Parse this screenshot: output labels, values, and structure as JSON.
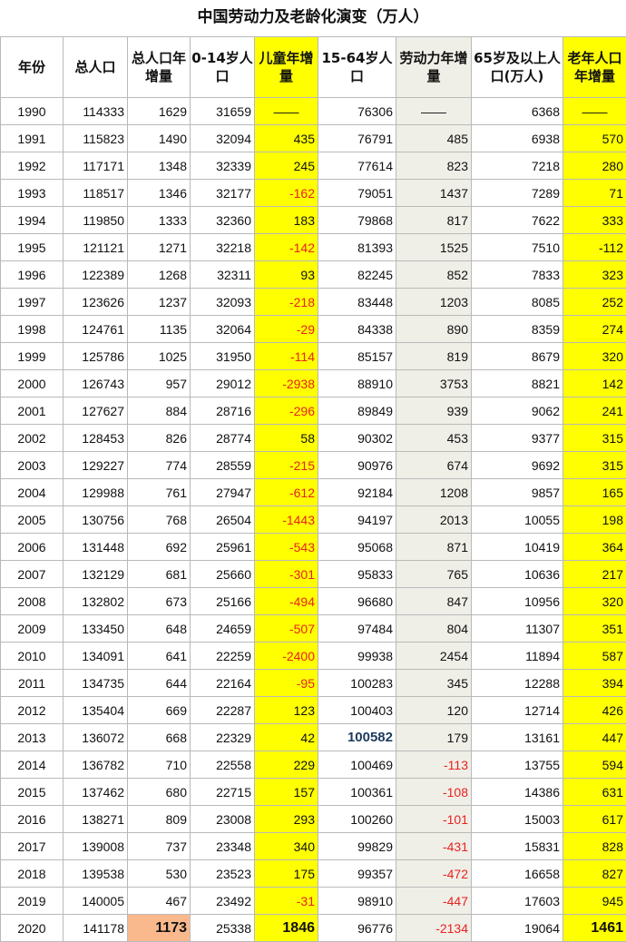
{
  "title": "中国劳动力及老龄化演变（万人）",
  "headers": [
    "年份",
    "总人口",
    "总人口年增量",
    "0-14岁人口",
    "儿童年增量",
    "15-64岁人口",
    "劳动力年增量",
    "65岁及以上人口(万人)",
    "老年人口年增量"
  ],
  "rows": [
    [
      "1990",
      "114333",
      "1629",
      "31659",
      "——",
      "76306",
      "——",
      "6368",
      "——"
    ],
    [
      "1991",
      "115823",
      "1490",
      "32094",
      "435",
      "76791",
      "485",
      "6938",
      "570"
    ],
    [
      "1992",
      "117171",
      "1348",
      "32339",
      "245",
      "77614",
      "823",
      "7218",
      "280"
    ],
    [
      "1993",
      "118517",
      "1346",
      "32177",
      "-162",
      "79051",
      "1437",
      "7289",
      "71"
    ],
    [
      "1994",
      "119850",
      "1333",
      "32360",
      "183",
      "79868",
      "817",
      "7622",
      "333"
    ],
    [
      "1995",
      "121121",
      "1271",
      "32218",
      "-142",
      "81393",
      "1525",
      "7510",
      "-112"
    ],
    [
      "1996",
      "122389",
      "1268",
      "32311",
      "93",
      "82245",
      "852",
      "7833",
      "323"
    ],
    [
      "1997",
      "123626",
      "1237",
      "32093",
      "-218",
      "83448",
      "1203",
      "8085",
      "252"
    ],
    [
      "1998",
      "124761",
      "1135",
      "32064",
      "-29",
      "84338",
      "890",
      "8359",
      "274"
    ],
    [
      "1999",
      "125786",
      "1025",
      "31950",
      "-114",
      "85157",
      "819",
      "8679",
      "320"
    ],
    [
      "2000",
      "126743",
      "957",
      "29012",
      "-2938",
      "88910",
      "3753",
      "8821",
      "142"
    ],
    [
      "2001",
      "127627",
      "884",
      "28716",
      "-296",
      "89849",
      "939",
      "9062",
      "241"
    ],
    [
      "2002",
      "128453",
      "826",
      "28774",
      "58",
      "90302",
      "453",
      "9377",
      "315"
    ],
    [
      "2003",
      "129227",
      "774",
      "28559",
      "-215",
      "90976",
      "674",
      "9692",
      "315"
    ],
    [
      "2004",
      "129988",
      "761",
      "27947",
      "-612",
      "92184",
      "1208",
      "9857",
      "165"
    ],
    [
      "2005",
      "130756",
      "768",
      "26504",
      "-1443",
      "94197",
      "2013",
      "10055",
      "198"
    ],
    [
      "2006",
      "131448",
      "692",
      "25961",
      "-543",
      "95068",
      "871",
      "10419",
      "364"
    ],
    [
      "2007",
      "132129",
      "681",
      "25660",
      "-301",
      "95833",
      "765",
      "10636",
      "217"
    ],
    [
      "2008",
      "132802",
      "673",
      "25166",
      "-494",
      "96680",
      "847",
      "10956",
      "320"
    ],
    [
      "2009",
      "133450",
      "648",
      "24659",
      "-507",
      "97484",
      "804",
      "11307",
      "351"
    ],
    [
      "2010",
      "134091",
      "641",
      "22259",
      "-2400",
      "99938",
      "2454",
      "11894",
      "587"
    ],
    [
      "2011",
      "134735",
      "644",
      "22164",
      "-95",
      "100283",
      "345",
      "12288",
      "394"
    ],
    [
      "2012",
      "135404",
      "669",
      "22287",
      "123",
      "100403",
      "120",
      "12714",
      "426"
    ],
    [
      "2013",
      "136072",
      "668",
      "22329",
      "42",
      "100582",
      "179",
      "13161",
      "447"
    ],
    [
      "2014",
      "136782",
      "710",
      "22558",
      "229",
      "100469",
      "-113",
      "13755",
      "594"
    ],
    [
      "2015",
      "137462",
      "680",
      "22715",
      "157",
      "100361",
      "-108",
      "14386",
      "631"
    ],
    [
      "2016",
      "138271",
      "809",
      "23008",
      "293",
      "100260",
      "-101",
      "15003",
      "617"
    ],
    [
      "2017",
      "139008",
      "737",
      "23348",
      "340",
      "99829",
      "-431",
      "15831",
      "828"
    ],
    [
      "2018",
      "139538",
      "530",
      "23523",
      "175",
      "99357",
      "-472",
      "16658",
      "827"
    ],
    [
      "2019",
      "140005",
      "467",
      "23492",
      "-31",
      "98910",
      "-447",
      "17603",
      "945"
    ],
    [
      "2020",
      "141178",
      "1173",
      "25338",
      "1846",
      "96776",
      "-2134",
      "19064",
      "1461"
    ]
  ],
  "colors": {
    "yellow": "#ffff00",
    "gray": "#efeee7",
    "orange": "#f9b98c",
    "negative": "#e8231f",
    "highlight_navy": "#1d3a5e"
  }
}
